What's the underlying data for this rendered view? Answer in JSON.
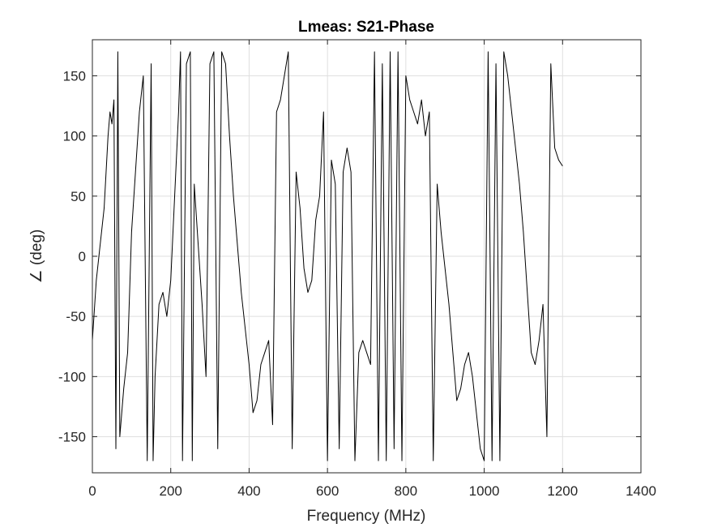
{
  "chart_data": {
    "type": "line",
    "title": "Lmeas: S21-Phase",
    "xlabel": "Frequency (MHz)",
    "ylabel": "∠ (deg)",
    "xlim": [
      0,
      1400
    ],
    "ylim": [
      -180,
      180
    ],
    "xticks": [
      0,
      200,
      400,
      600,
      800,
      1000,
      1200,
      1400
    ],
    "yticks": [
      -150,
      -100,
      -50,
      0,
      50,
      100,
      150
    ],
    "xtick_labels": [
      "0",
      "200",
      "400",
      "600",
      "800",
      "1000",
      "1200",
      "1400"
    ],
    "ytick_labels": [
      "-150",
      "-100",
      "-50",
      "0",
      "50",
      "100",
      "150"
    ],
    "grid": true,
    "colors": {
      "line": "#000000",
      "grid": "#dfdfdf",
      "axes": "#262626"
    },
    "series": [
      {
        "x": [
          0,
          10,
          20,
          30,
          40,
          45,
          50,
          55,
          60,
          65,
          70,
          80,
          90,
          100,
          110,
          120,
          130,
          140,
          150,
          155,
          160,
          170,
          180,
          190,
          200,
          210,
          220,
          225,
          230,
          240,
          250,
          255,
          260,
          270,
          280,
          290,
          300,
          310,
          320,
          330,
          340,
          350,
          360,
          370,
          380,
          390,
          400,
          410,
          420,
          430,
          440,
          450,
          460,
          470,
          480,
          490,
          500,
          510,
          520,
          530,
          540,
          550,
          560,
          570,
          580,
          590,
          600,
          610,
          620,
          630,
          640,
          650,
          660,
          670,
          680,
          690,
          700,
          710,
          720,
          730,
          740,
          750,
          760,
          770,
          780,
          790,
          800,
          810,
          820,
          830,
          840,
          850,
          860,
          870,
          880,
          890,
          900,
          910,
          920,
          930,
          940,
          950,
          960,
          970,
          980,
          990,
          1000,
          1010,
          1020,
          1030,
          1040,
          1050,
          1060,
          1070,
          1080,
          1090,
          1100,
          1110,
          1120,
          1130,
          1140,
          1150,
          1160,
          1170,
          1180,
          1190,
          1200
        ],
        "y": [
          -70,
          -20,
          10,
          40,
          100,
          120,
          110,
          130,
          -160,
          170,
          -150,
          -110,
          -80,
          20,
          70,
          120,
          150,
          -170,
          160,
          -170,
          -100,
          -40,
          -30,
          -50,
          -20,
          50,
          120,
          170,
          -170,
          160,
          170,
          -170,
          60,
          10,
          -40,
          -100,
          160,
          170,
          -160,
          170,
          160,
          100,
          50,
          10,
          -30,
          -60,
          -90,
          -130,
          -120,
          -90,
          -80,
          -70,
          -140,
          120,
          130,
          150,
          170,
          -160,
          70,
          40,
          -10,
          -30,
          -20,
          30,
          50,
          120,
          -170,
          80,
          60,
          -160,
          70,
          90,
          70,
          -170,
          -80,
          -70,
          -80,
          -90,
          170,
          -170,
          160,
          -170,
          170,
          -160,
          170,
          -170,
          150,
          130,
          120,
          110,
          130,
          100,
          120,
          -170,
          60,
          20,
          -10,
          -40,
          -80,
          -120,
          -110,
          -90,
          -80,
          -100,
          -130,
          -160,
          -170,
          170,
          -170,
          160,
          -170,
          170,
          150,
          120,
          90,
          60,
          20,
          -30,
          -80,
          -90,
          -70,
          -40,
          -150,
          160,
          90,
          80,
          75
        ]
      }
    ]
  }
}
